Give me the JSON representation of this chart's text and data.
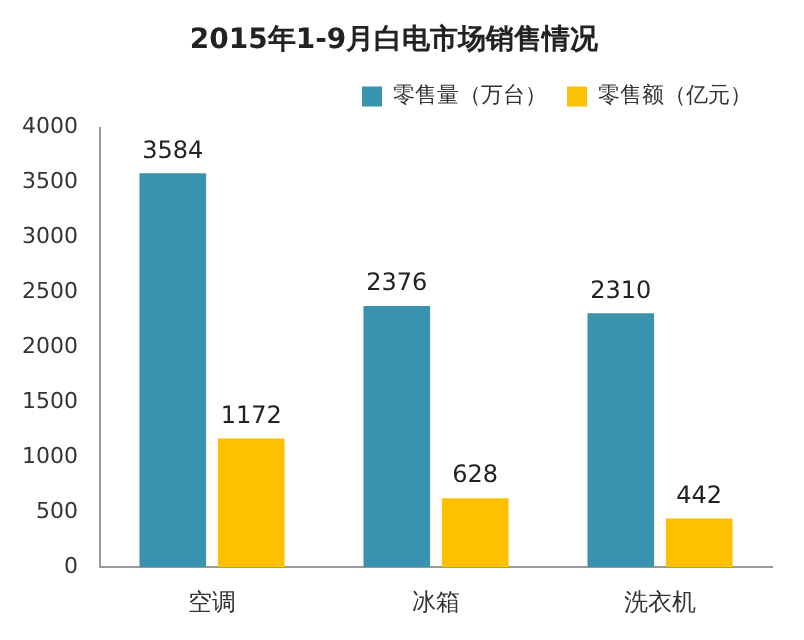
{
  "chart_data": {
    "type": "bar",
    "title": "2015年1-9月白电市场销售情况",
    "categories": [
      "空调",
      "冰箱",
      "洗衣机"
    ],
    "series": [
      {
        "name": "零售量（万台）",
        "color": "#3a93ae",
        "values": [
          3584,
          2376,
          2310
        ]
      },
      {
        "name": "零售额（亿元）",
        "color": "#ffc000",
        "values": [
          1172,
          628,
          442
        ]
      }
    ],
    "ylim": [
      0,
      4000
    ],
    "yticks": [
      0,
      500,
      1000,
      1500,
      2000,
      2500,
      3000,
      3500,
      4000
    ],
    "grid": false,
    "legend": "top right",
    "data_labels": true
  }
}
